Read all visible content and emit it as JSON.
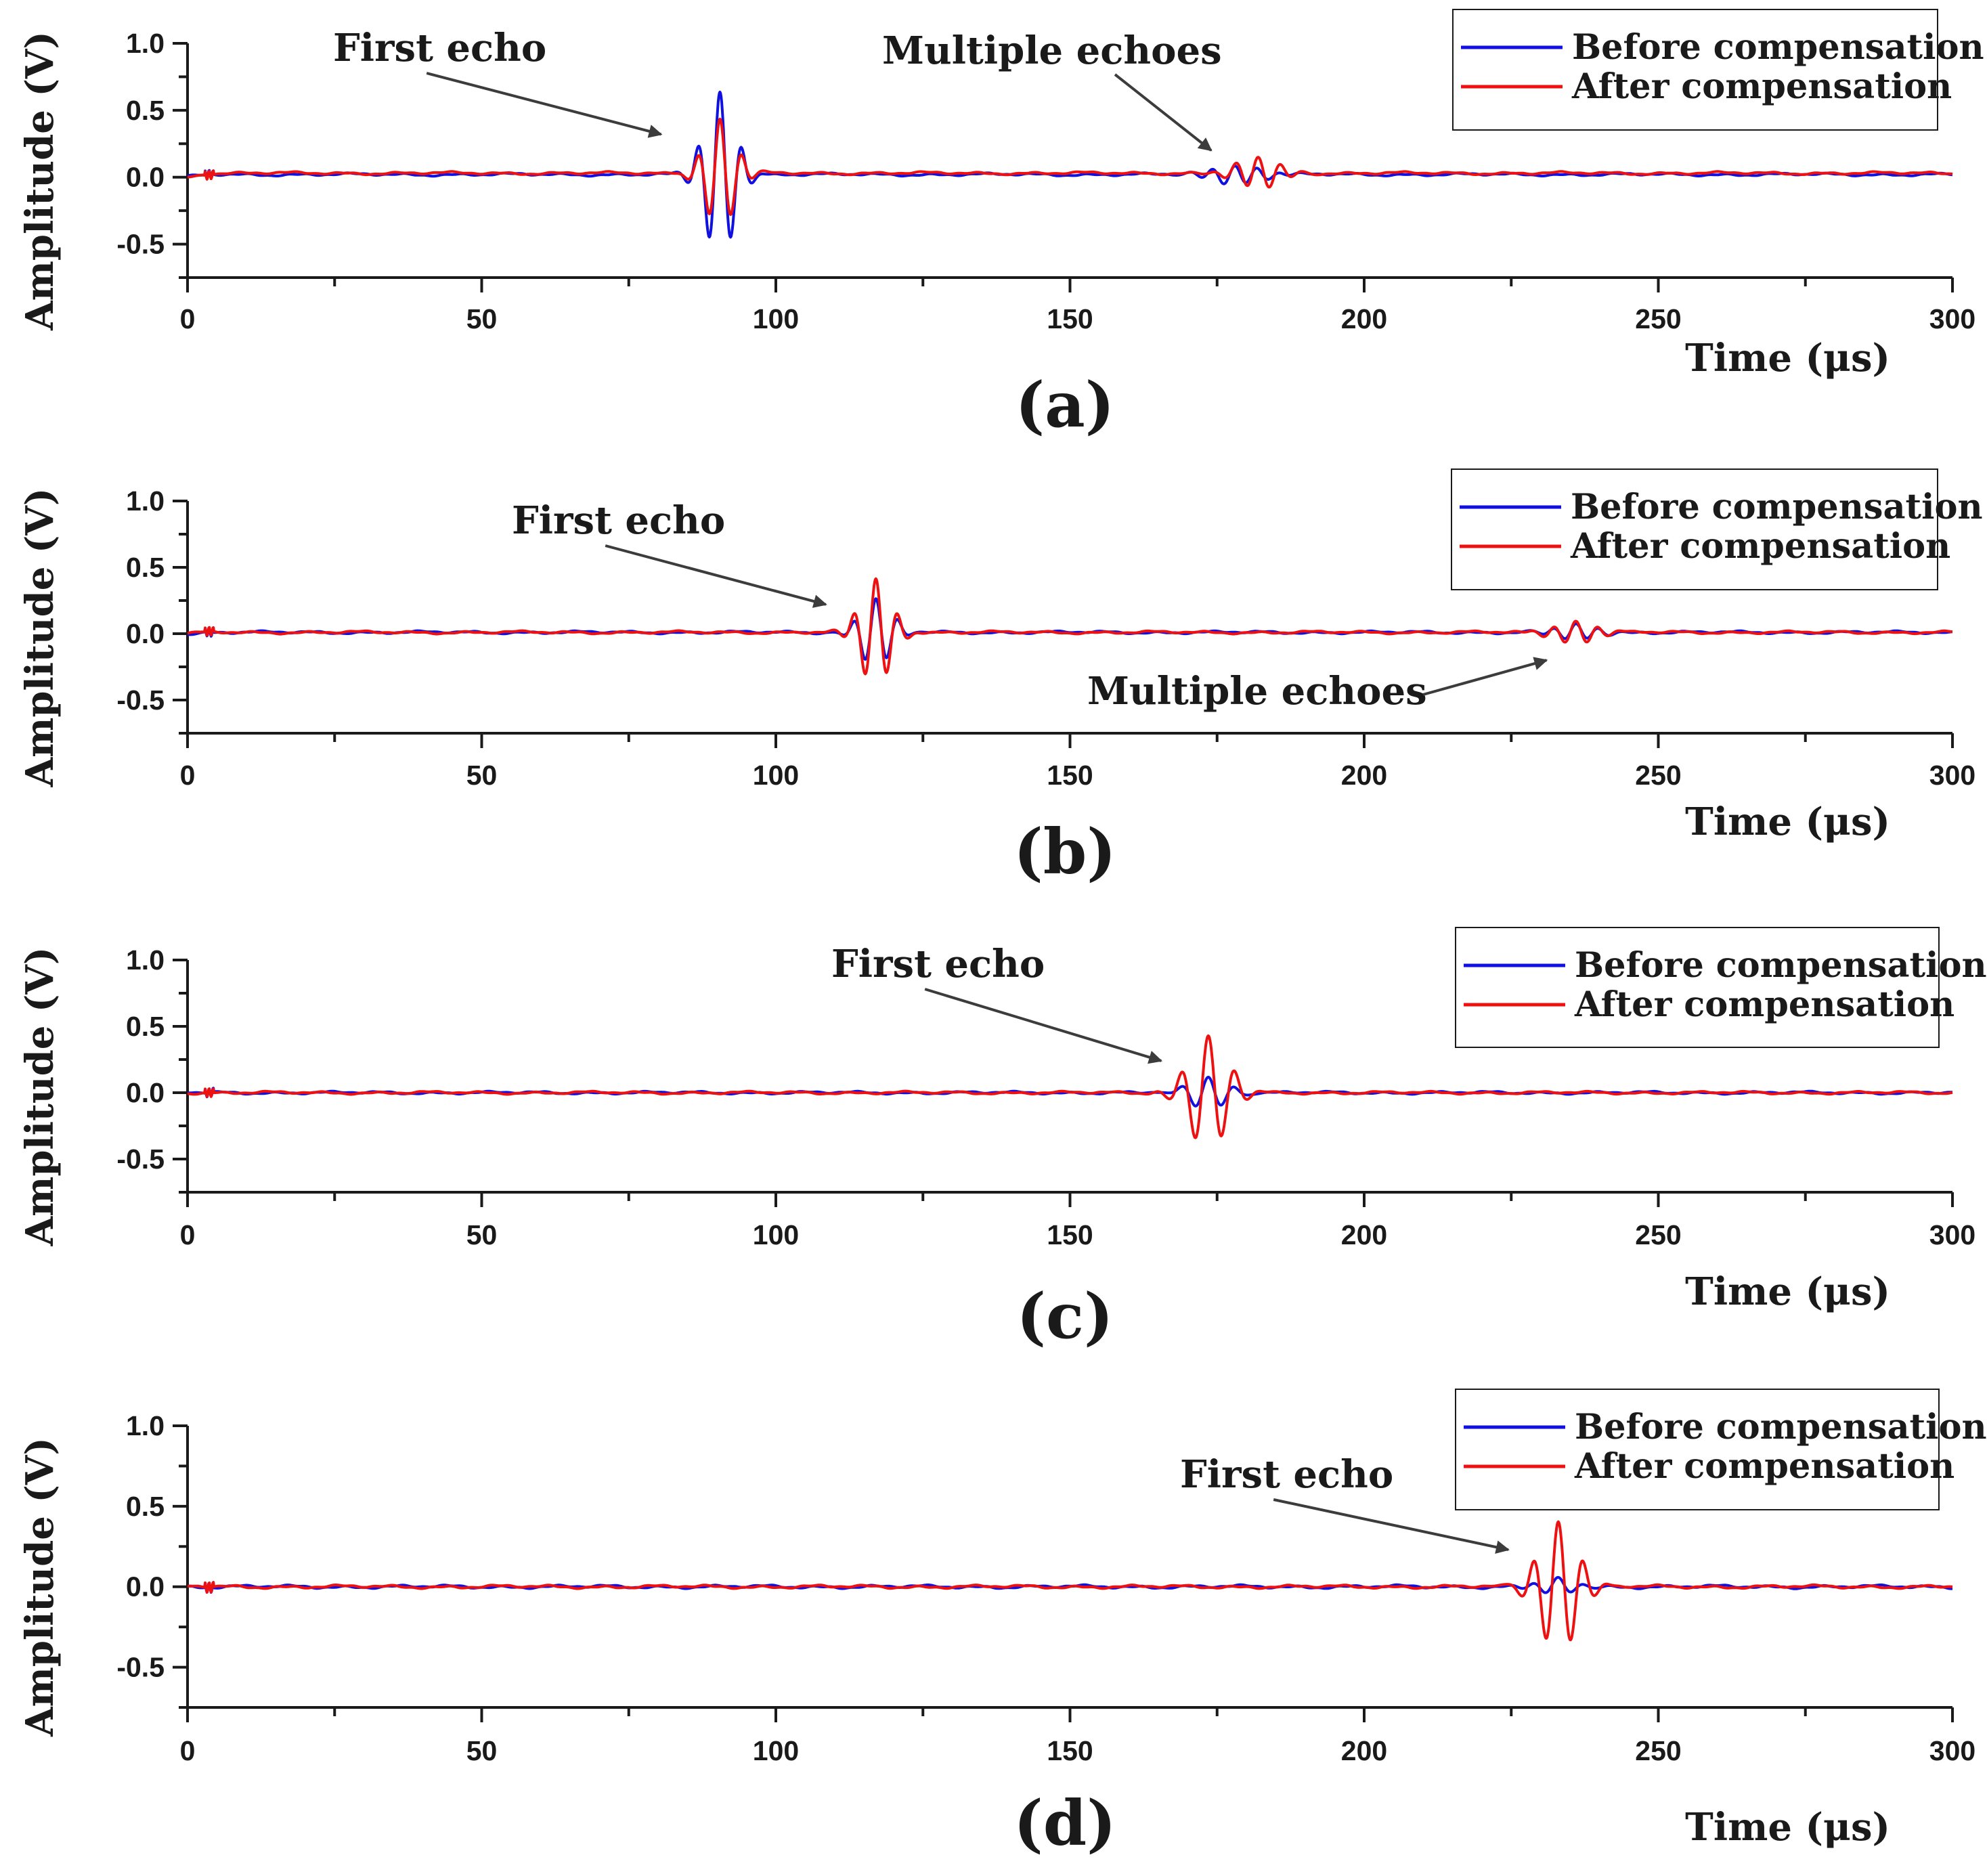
{
  "colors": {
    "before": "#1010e0",
    "after": "#ee1111",
    "axis": "#1a1a1a",
    "arrow": "#3c3c3c"
  },
  "legend": {
    "before": "Before compensation",
    "after": "After compensation"
  },
  "chart_data": [
    {
      "type": "line",
      "panel_label": "(a)",
      "xlabel": "Time (μs)",
      "ylabel": "Amplitude (V)",
      "xlim": [
        0,
        300
      ],
      "ylim": [
        -0.75,
        1.0
      ],
      "x_ticks": [
        "0",
        "50",
        "100",
        "150",
        "200",
        "250",
        "300"
      ],
      "y_ticks": [
        "1.0",
        "0.5",
        "0.0",
        "-0.5"
      ],
      "legend_position": "top-right",
      "series": [
        {
          "name": "Before compensation",
          "baseline": 0.02,
          "packets": [
            {
              "t0": 90.5,
              "amp": 0.61,
              "period": 3.8,
              "width": 3.6
            },
            {
              "t0": 178,
              "amp": 0.07,
              "period": 3.8,
              "width": 6
            }
          ]
        },
        {
          "name": "After compensation",
          "baseline": 0.03,
          "packets": [
            {
              "t0": 90.5,
              "amp": 0.4,
              "period": 3.8,
              "width": 3.6
            },
            {
              "t0": 182,
              "amp": 0.12,
              "period": 3.8,
              "width": 5
            }
          ]
        }
      ],
      "annotations": [
        {
          "text": "First echo",
          "points_to": {
            "x": 80.5,
            "y": 0.32
          }
        },
        {
          "text": "Multiple echoes",
          "points_to": {
            "x": 174,
            "y": 0.2
          }
        }
      ]
    },
    {
      "type": "line",
      "panel_label": "(b)",
      "xlabel": "Time (μs)",
      "ylabel": "Amplitude (V)",
      "xlim": [
        0,
        300
      ],
      "ylim": [
        -0.75,
        1.0
      ],
      "x_ticks": [
        "0",
        "50",
        "100",
        "150",
        "200",
        "250",
        "300"
      ],
      "y_ticks": [
        "1.0",
        "0.5",
        "0.0",
        "-0.5"
      ],
      "legend_position": "top-right",
      "series": [
        {
          "name": "Before compensation",
          "baseline": 0.01,
          "packets": [
            {
              "t0": 117,
              "amp": 0.26,
              "period": 3.8,
              "width": 3.6
            },
            {
              "t0": 236,
              "amp": 0.06,
              "period": 3.8,
              "width": 5
            }
          ]
        },
        {
          "name": "After compensation",
          "baseline": 0.01,
          "packets": [
            {
              "t0": 117,
              "amp": 0.4,
              "period": 3.8,
              "width": 3.6
            },
            {
              "t0": 236,
              "amp": 0.08,
              "period": 3.8,
              "width": 5
            }
          ]
        }
      ],
      "annotations": [
        {
          "text": "First echo",
          "points_to": {
            "x": 108.5,
            "y": 0.22
          }
        },
        {
          "text": "Multiple echoes",
          "points_to": {
            "x": 231,
            "y": -0.2
          }
        }
      ]
    },
    {
      "type": "line",
      "panel_label": "(c)",
      "xlabel": "Time (μs)",
      "ylabel": "Amplitude (V)",
      "xlim": [
        0,
        300
      ],
      "ylim": [
        -0.75,
        1.0
      ],
      "x_ticks": [
        "0",
        "50",
        "100",
        "150",
        "200",
        "250",
        "300"
      ],
      "y_ticks": [
        "1.0",
        "0.5",
        "0.0",
        "-0.5"
      ],
      "legend_position": "top-right",
      "series": [
        {
          "name": "Before compensation",
          "baseline": 0.0,
          "packets": [
            {
              "t0": 173.5,
              "amp": 0.12,
              "period": 4.6,
              "width": 4.5
            }
          ]
        },
        {
          "name": "After compensation",
          "baseline": 0.0,
          "packets": [
            {
              "t0": 173.5,
              "amp": 0.43,
              "period": 4.6,
              "width": 4.5
            }
          ]
        }
      ],
      "annotations": [
        {
          "text": "First echo",
          "points_to": {
            "x": 165.5,
            "y": 0.24
          }
        }
      ]
    },
    {
      "type": "line",
      "panel_label": "(d)",
      "xlabel": "Time (μs)",
      "ylabel": "Amplitude (V)",
      "xlim": [
        0,
        300
      ],
      "ylim": [
        -0.75,
        1.0
      ],
      "x_ticks": [
        "0",
        "50",
        "100",
        "150",
        "200",
        "250",
        "300"
      ],
      "y_ticks": [
        "1.0",
        "0.5",
        "0.0",
        "-0.5"
      ],
      "legend_position": "top-right",
      "series": [
        {
          "name": "Before compensation",
          "baseline": 0.0,
          "packets": [
            {
              "t0": 233,
              "amp": 0.05,
              "period": 4.3,
              "width": 4.5
            }
          ]
        },
        {
          "name": "After compensation",
          "baseline": 0.0,
          "packets": [
            {
              "t0": 233,
              "amp": 0.4,
              "period": 4.3,
              "width": 4.5
            }
          ]
        }
      ],
      "annotations": [
        {
          "text": "First echo",
          "points_to": {
            "x": 224.5,
            "y": 0.23
          }
        }
      ]
    }
  ]
}
